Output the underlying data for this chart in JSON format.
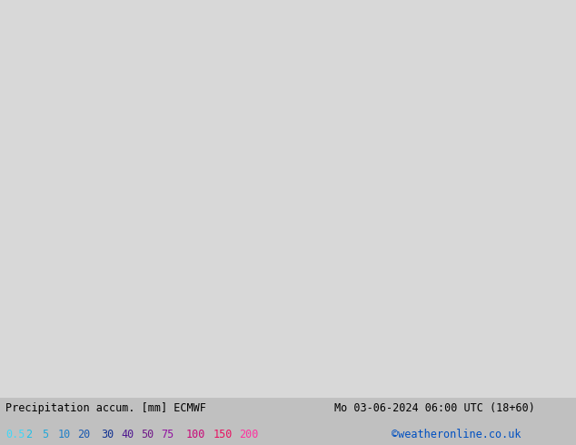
{
  "title_left": "Precipitation accum. [mm] ECMWF",
  "title_right": "Mo 03-06-2024 06:00 UTC (18+60)",
  "credit": "©weatheronline.co.uk",
  "legend_values": [
    "0.5",
    "2",
    "5",
    "10",
    "20",
    "30",
    "40",
    "50",
    "75",
    "100",
    "150",
    "200"
  ],
  "legend_colors_text": [
    "#40d8f8",
    "#20c0e8",
    "#20a8d8",
    "#2080c8",
    "#1858b0",
    "#103090",
    "#501890",
    "#701888",
    "#9010a0",
    "#c80878",
    "#e81060",
    "#ff30a0"
  ],
  "precip_levels": [
    0.5,
    2,
    5,
    10,
    20,
    30,
    40,
    50,
    75,
    100,
    150,
    200
  ],
  "precip_colors": [
    "#b4eef4",
    "#78d4f0",
    "#4ab4ec",
    "#2090e0",
    "#1068c8",
    "#0840a8",
    "#3c1890",
    "#601080",
    "#8c0898",
    "#b80070",
    "#e00048",
    "#ff0060"
  ],
  "land_color": "#c8e8a0",
  "sea_color": "#d8d8d8",
  "border_color": "#888888",
  "bottom_bar_color": "#c0c0c0",
  "fig_width": 6.34,
  "fig_height": 4.9,
  "dpi": 100,
  "extent": [
    19.0,
    42.5,
    33.5,
    43.5
  ],
  "map_extent_lon_min": 19.0,
  "map_extent_lon_max": 42.5,
  "map_extent_lat_min": 33.5,
  "map_extent_lat_max": 43.5
}
